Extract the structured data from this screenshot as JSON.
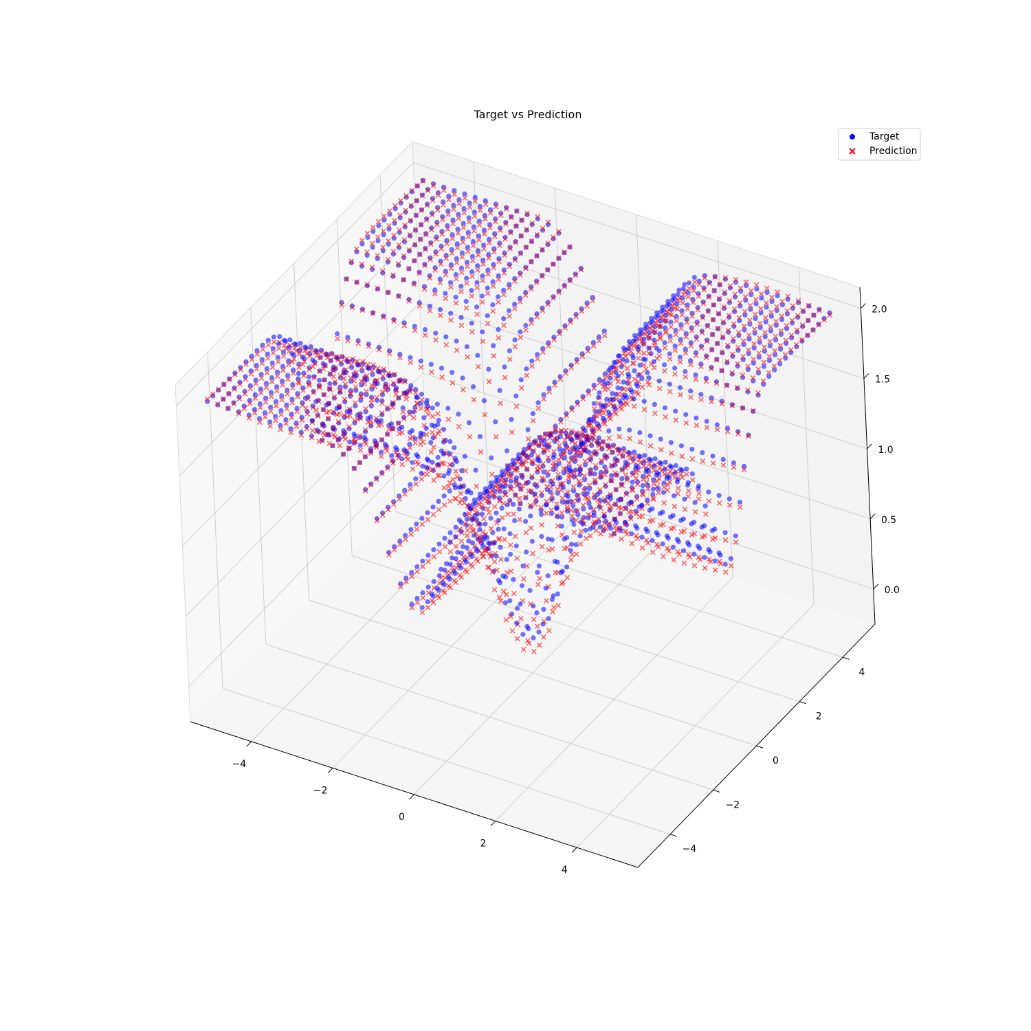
{
  "chart_data": {
    "type": "scatter",
    "projection": "3d",
    "title": "Target vs Prediction",
    "xlabel": "",
    "ylabel": "",
    "zlabel": "",
    "xlim": [
      -5.5,
      5.5
    ],
    "ylim": [
      -5.5,
      5.5
    ],
    "zlim": [
      -0.25,
      2.15
    ],
    "xticks": [
      -4,
      -2,
      0,
      2,
      4
    ],
    "yticks": [
      -4,
      -2,
      0,
      2,
      4
    ],
    "zticks": [
      0.0,
      0.5,
      1.0,
      1.5,
      2.0
    ],
    "xtick_labels": [
      "−4",
      "−2",
      "0",
      "2",
      "4"
    ],
    "ytick_labels": [
      "−4",
      "−2",
      "0",
      "2",
      "4"
    ],
    "ztick_labels": [
      "0.0",
      "0.5",
      "1.0",
      "1.5",
      "2.0"
    ],
    "grid": true,
    "legend_position": "top-right",
    "sampling": {
      "x_range": [
        -5,
        5
      ],
      "y_range": [
        -5,
        5
      ],
      "steps": 40
    },
    "series": [
      {
        "name": "Target",
        "marker": "circle",
        "color": "#0000ff",
        "alpha": 0.55,
        "formula": "z = 2 - exp(-x^2) - exp(-y^2)"
      },
      {
        "name": "Prediction",
        "marker": "x",
        "color": "#ff0000",
        "alpha": 0.6,
        "formula": "approximately z = 2 - exp(-x^2) - exp(-y^2)"
      }
    ]
  }
}
